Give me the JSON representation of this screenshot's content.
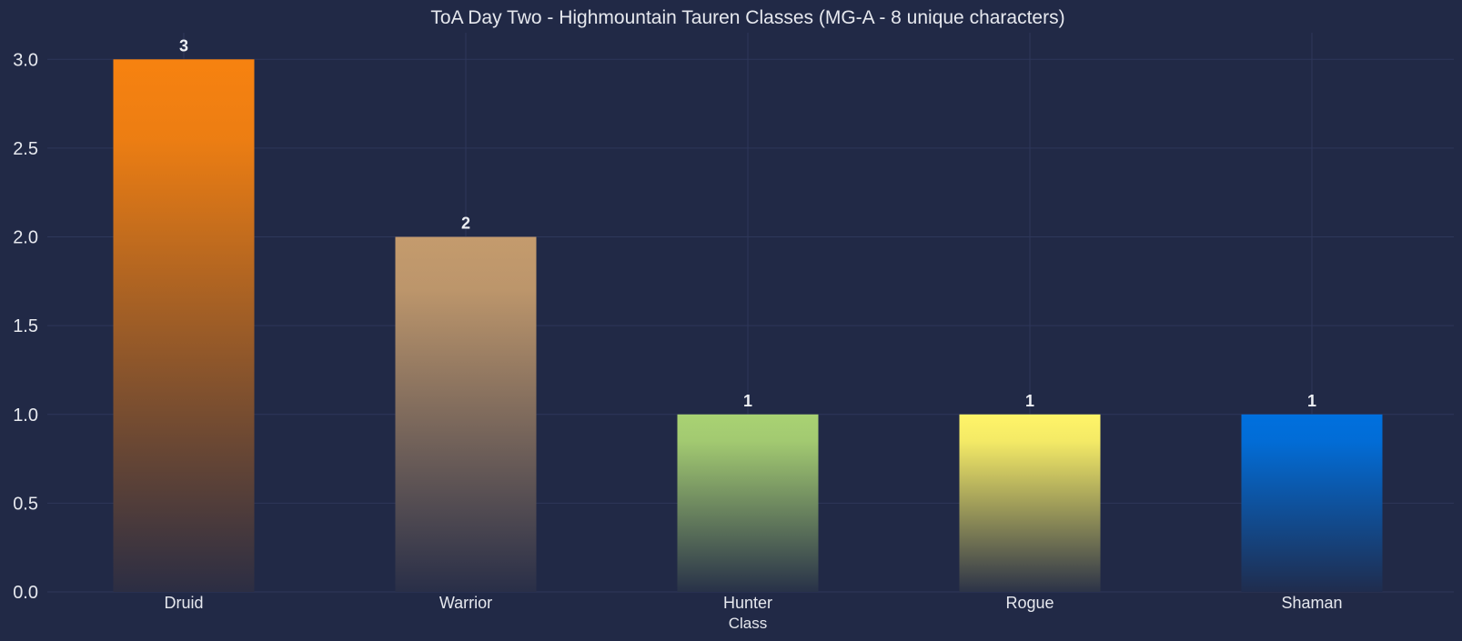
{
  "chart_data": {
    "type": "bar",
    "title": "ToA Day Two - Highmountain Tauren Classes (MG-A - 8 unique characters)",
    "xlabel": "Class",
    "ylabel": "",
    "categories": [
      "Druid",
      "Warrior",
      "Hunter",
      "Rogue",
      "Shaman"
    ],
    "values": [
      3,
      2,
      1,
      1,
      1
    ],
    "value_labels": [
      "3",
      "2",
      "1",
      "1",
      "1"
    ],
    "bar_colors": [
      "#F78210",
      "#C49B6D",
      "#A9D273",
      "#FFF468",
      "#0070DE"
    ],
    "ylim": [
      0,
      3.15
    ],
    "yticks": [
      0,
      0.5,
      1,
      1.5,
      2,
      2.5,
      3
    ],
    "ytick_labels": [
      "0.0",
      "0.5",
      "1.0",
      "1.5",
      "2.0",
      "2.5",
      "3.0"
    ],
    "grid": true,
    "legend": false
  },
  "colors": {
    "background": "#212946",
    "grid": "#2e375a",
    "text": "#e6e8ee"
  }
}
